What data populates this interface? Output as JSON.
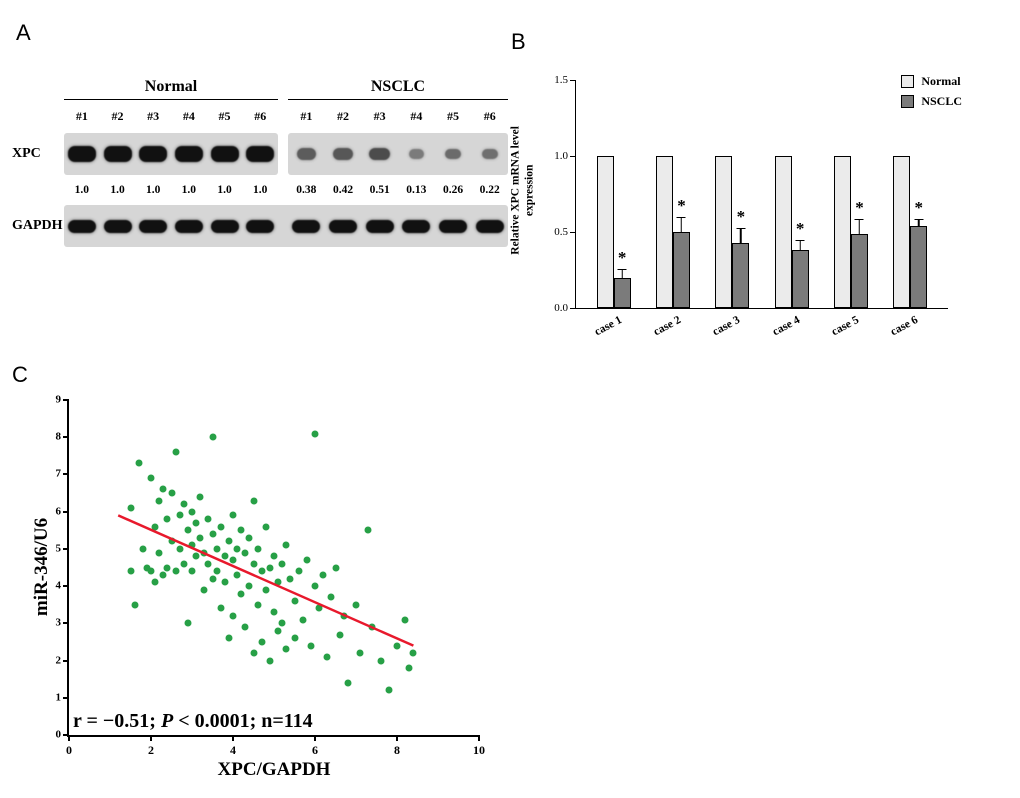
{
  "panels": {
    "a": {
      "label": "A",
      "group_labels": [
        "Normal",
        "NSCLC"
      ],
      "lane_labels": [
        "#1",
        "#2",
        "#3",
        "#4",
        "#5",
        "#6"
      ],
      "row_labels": {
        "xpc": "XPC",
        "gapdh": "GAPDH"
      },
      "xpc_values": {
        "normal": [
          "1.0",
          "1.0",
          "1.0",
          "1.0",
          "1.0",
          "1.0"
        ],
        "nsclc": [
          "0.38",
          "0.42",
          "0.51",
          "0.13",
          "0.26",
          "0.22"
        ]
      }
    },
    "b": {
      "label": "B"
    },
    "c": {
      "label": "C"
    }
  },
  "chart_data": [
    {
      "type": "bar",
      "panel": "B",
      "categories": [
        "case 1",
        "case 2",
        "case 3",
        "case 4",
        "case 5",
        "case 6"
      ],
      "series": [
        {
          "name": "Normal",
          "color": "#ebebeb",
          "values": [
            1.0,
            1.0,
            1.0,
            1.0,
            1.0,
            1.0
          ],
          "errors": [
            0,
            0,
            0,
            0,
            0,
            0
          ]
        },
        {
          "name": "NSCLC",
          "color": "#7b7b7b",
          "values": [
            0.2,
            0.5,
            0.43,
            0.38,
            0.49,
            0.54
          ],
          "errors": [
            0.05,
            0.09,
            0.09,
            0.06,
            0.09,
            0.04
          ]
        }
      ],
      "significance": [
        "*",
        "*",
        "*",
        "*",
        "*",
        "*"
      ],
      "ylabel": "Relative XPC mRNA level expression",
      "ylim": [
        0,
        1.5
      ],
      "yticks": [
        "0.0",
        "0.5",
        "1.0",
        "1.5"
      ],
      "legend_position": "top-right",
      "grid": false
    },
    {
      "type": "scatter",
      "panel": "C",
      "xlabel": "XPC/GAPDH",
      "ylabel": "miR-346/U6",
      "xlim": [
        0,
        10
      ],
      "ylim": [
        0,
        9
      ],
      "xticks": [
        "0",
        "2",
        "4",
        "6",
        "8",
        "10"
      ],
      "yticks": [
        "0",
        "1",
        "2",
        "3",
        "4",
        "5",
        "6",
        "7",
        "8",
        "9"
      ],
      "point_color": "#27a046",
      "line_color": "#e8192c",
      "regression_line": {
        "x1": 1.2,
        "y1": 5.9,
        "x2": 8.4,
        "y2": 2.4
      },
      "annotation": "r = −0.51; P < 0.0001; n=114",
      "annotation_parts": [
        "r = −0.51; ",
        "P",
        " < 0.0001; n=114"
      ],
      "points": [
        [
          1.5,
          4.4
        ],
        [
          1.5,
          6.1
        ],
        [
          1.6,
          3.5
        ],
        [
          1.7,
          7.3
        ],
        [
          1.8,
          5.0
        ],
        [
          1.9,
          4.5
        ],
        [
          2.0,
          6.9
        ],
        [
          2.0,
          4.4
        ],
        [
          2.1,
          5.6
        ],
        [
          2.1,
          4.1
        ],
        [
          2.2,
          6.3
        ],
        [
          2.2,
          4.9
        ],
        [
          2.3,
          6.6
        ],
        [
          2.3,
          4.3
        ],
        [
          2.4,
          5.8
        ],
        [
          2.4,
          4.5
        ],
        [
          2.5,
          6.5
        ],
        [
          2.5,
          5.2
        ],
        [
          2.6,
          7.6
        ],
        [
          2.6,
          4.4
        ],
        [
          2.7,
          5.9
        ],
        [
          2.7,
          5.0
        ],
        [
          2.8,
          6.2
        ],
        [
          2.8,
          4.6
        ],
        [
          2.9,
          5.5
        ],
        [
          2.9,
          3.0
        ],
        [
          3.0,
          6.0
        ],
        [
          3.0,
          5.1
        ],
        [
          3.0,
          4.4
        ],
        [
          3.1,
          5.7
        ],
        [
          3.1,
          4.8
        ],
        [
          3.2,
          6.4
        ],
        [
          3.2,
          5.3
        ],
        [
          3.3,
          4.9
        ],
        [
          3.3,
          3.9
        ],
        [
          3.4,
          5.8
        ],
        [
          3.4,
          4.6
        ],
        [
          3.5,
          8.0
        ],
        [
          3.5,
          5.4
        ],
        [
          3.5,
          4.2
        ],
        [
          3.6,
          5.0
        ],
        [
          3.6,
          4.4
        ],
        [
          3.7,
          5.6
        ],
        [
          3.7,
          3.4
        ],
        [
          3.8,
          4.8
        ],
        [
          3.8,
          4.1
        ],
        [
          3.9,
          5.2
        ],
        [
          3.9,
          2.6
        ],
        [
          4.0,
          5.9
        ],
        [
          4.0,
          4.7
        ],
        [
          4.0,
          3.2
        ],
        [
          4.1,
          5.0
        ],
        [
          4.1,
          4.3
        ],
        [
          4.2,
          5.5
        ],
        [
          4.2,
          3.8
        ],
        [
          4.3,
          4.9
        ],
        [
          4.3,
          2.9
        ],
        [
          4.4,
          5.3
        ],
        [
          4.4,
          4.0
        ],
        [
          4.5,
          6.3
        ],
        [
          4.5,
          4.6
        ],
        [
          4.5,
          2.2
        ],
        [
          4.6,
          5.0
        ],
        [
          4.6,
          3.5
        ],
        [
          4.7,
          4.4
        ],
        [
          4.7,
          2.5
        ],
        [
          4.8,
          5.6
        ],
        [
          4.8,
          3.9
        ],
        [
          4.9,
          4.5
        ],
        [
          4.9,
          2.0
        ],
        [
          5.0,
          4.8
        ],
        [
          5.0,
          3.3
        ],
        [
          5.1,
          4.1
        ],
        [
          5.1,
          2.8
        ],
        [
          5.2,
          4.6
        ],
        [
          5.2,
          3.0
        ],
        [
          5.3,
          5.1
        ],
        [
          5.3,
          2.3
        ],
        [
          5.4,
          4.2
        ],
        [
          5.5,
          3.6
        ],
        [
          5.5,
          2.6
        ],
        [
          5.6,
          4.4
        ],
        [
          5.7,
          3.1
        ],
        [
          5.8,
          4.7
        ],
        [
          5.9,
          2.4
        ],
        [
          6.0,
          8.1
        ],
        [
          6.0,
          4.0
        ],
        [
          6.1,
          3.4
        ],
        [
          6.2,
          4.3
        ],
        [
          6.3,
          2.1
        ],
        [
          6.4,
          3.7
        ],
        [
          6.5,
          4.5
        ],
        [
          6.6,
          2.7
        ],
        [
          6.7,
          3.2
        ],
        [
          6.8,
          1.4
        ],
        [
          7.0,
          3.5
        ],
        [
          7.1,
          2.2
        ],
        [
          7.3,
          5.5
        ],
        [
          7.4,
          2.9
        ],
        [
          7.6,
          2.0
        ],
        [
          7.8,
          1.2
        ],
        [
          8.0,
          2.4
        ],
        [
          8.2,
          3.1
        ],
        [
          8.3,
          1.8
        ],
        [
          8.4,
          2.2
        ]
      ]
    }
  ]
}
